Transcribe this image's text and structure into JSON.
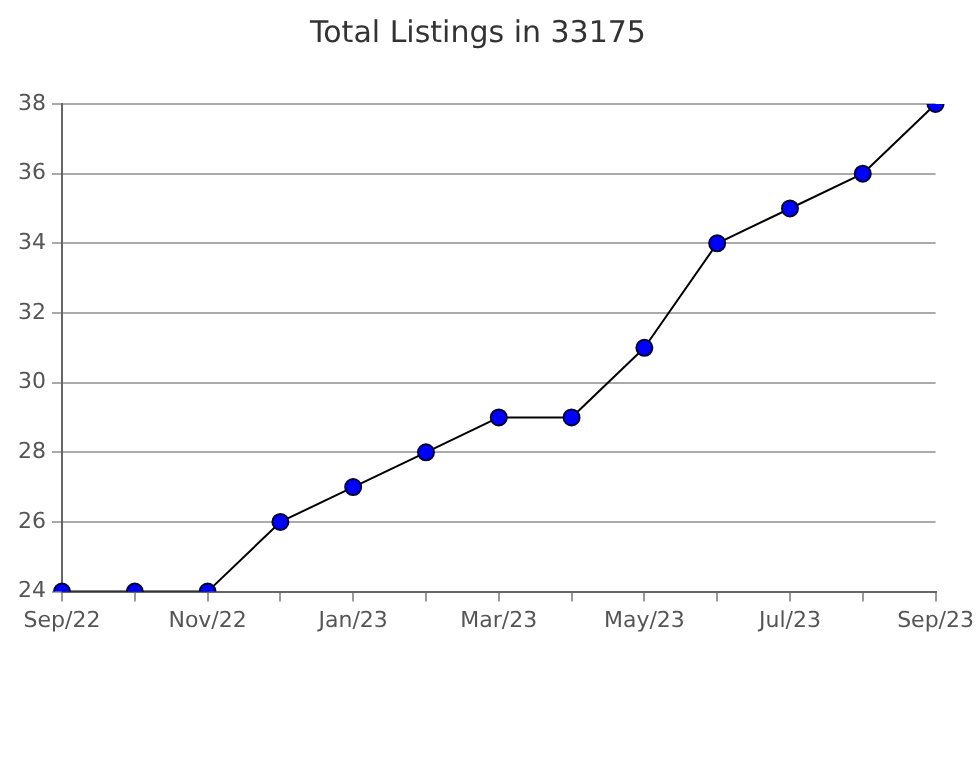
{
  "chart_data": {
    "type": "line",
    "title": "Total Listings in 33175",
    "categories": [
      "Sep/22",
      null,
      "Nov/22",
      null,
      "Jan/23",
      null,
      "Mar/23",
      null,
      "May/23",
      null,
      "Jul/23",
      null,
      "Sep/23"
    ],
    "series": [
      {
        "color": "#0000ff",
        "values": [
          24,
          24,
          24,
          26,
          27,
          28,
          29,
          29,
          31,
          34,
          35,
          36,
          38
        ]
      }
    ],
    "ylim": [
      24,
      38
    ],
    "yticks": [
      24,
      26,
      28,
      30,
      32,
      34,
      36,
      38
    ],
    "grid": "y",
    "legend": false,
    "marker": "circle",
    "line_style": "solid"
  }
}
